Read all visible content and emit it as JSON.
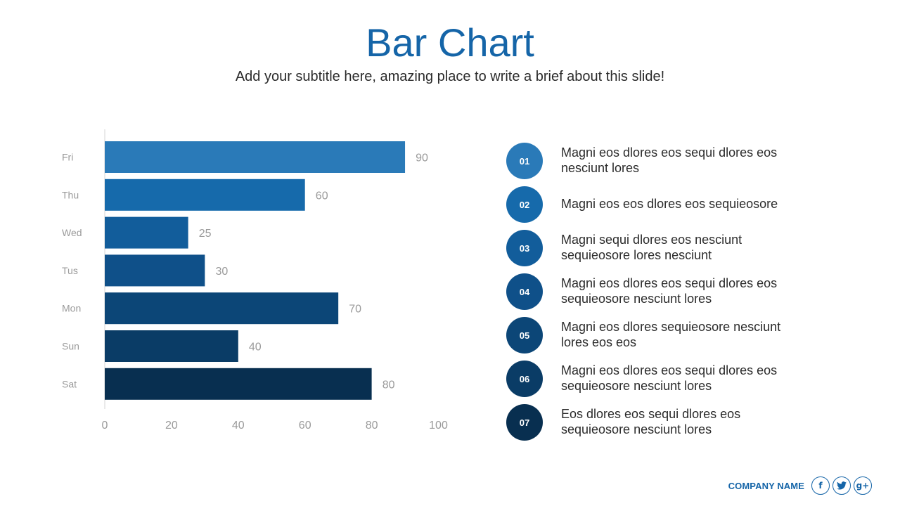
{
  "slide": {
    "title": "Bar Chart",
    "subtitle": "Add your subtitle here, amazing place to write a brief about this slide!"
  },
  "chart_data": {
    "type": "bar",
    "orientation": "horizontal",
    "categories": [
      "Fri",
      "Thu",
      "Wed",
      "Tus",
      "Mon",
      "Sun",
      "Sat"
    ],
    "values": [
      90,
      60,
      25,
      30,
      70,
      40,
      80
    ],
    "colors": [
      "#2a7ab8",
      "#166aab",
      "#125d9b",
      "#0f5089",
      "#0c4677",
      "#0a3c66",
      "#082f50"
    ],
    "x_ticks": [
      0,
      20,
      40,
      60,
      80,
      100
    ],
    "xlim": [
      0,
      100
    ],
    "grid": false,
    "value_labels": true
  },
  "list": {
    "items": [
      {
        "number": "01",
        "text": "Magni eos dlores eos sequi dlores eos nesciunt lores",
        "color": "#2a7ab8"
      },
      {
        "number": "02",
        "text": "Magni eos eos dlores eos sequieosore",
        "color": "#166aab"
      },
      {
        "number": "03",
        "text": "Magni sequi dlores eos nesciunt sequieosore lores nesciunt",
        "color": "#125d9b"
      },
      {
        "number": "04",
        "text": "Magni eos dlores eos sequi dlores eos sequieosore nesciunt lores",
        "color": "#0f5089"
      },
      {
        "number": "05",
        "text": "Magni eos dlores sequieosore nesciunt lores eos eos",
        "color": "#0c4677"
      },
      {
        "number": "06",
        "text": "Magni eos dlores eos sequi dlores eos sequieosore nesciunt lores",
        "color": "#0a3c66"
      },
      {
        "number": "07",
        "text": "Eos dlores eos sequi dlores eos sequieosore nesciunt lores",
        "color": "#082f50"
      }
    ]
  },
  "footer": {
    "company": "COMPANY NAME",
    "social": [
      {
        "icon": "facebook-icon",
        "glyph": "f"
      },
      {
        "icon": "twitter-icon",
        "glyph": ""
      },
      {
        "icon": "google-plus-icon",
        "glyph": "g+"
      }
    ]
  },
  "theme": {
    "accent": "#1565a8",
    "text": "#2b2b2b",
    "muted": "#9a9a9a"
  }
}
